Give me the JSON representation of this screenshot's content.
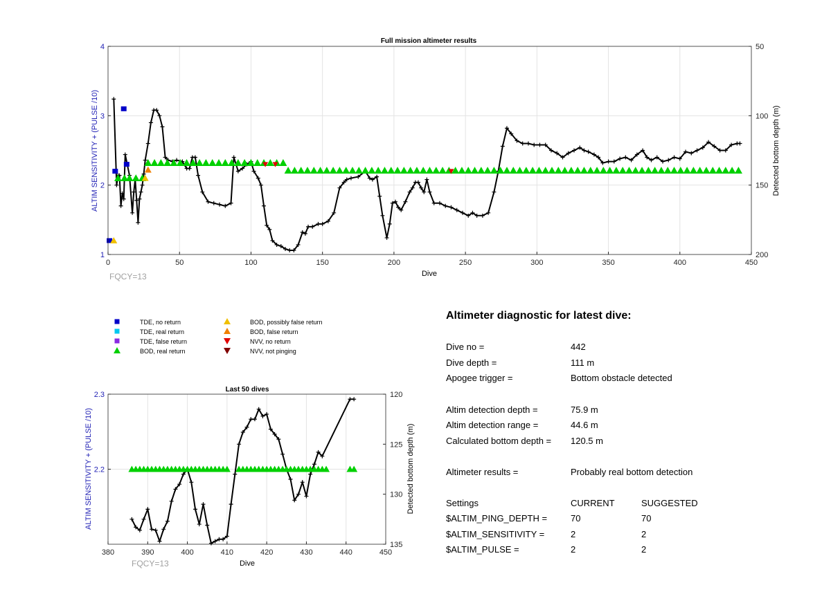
{
  "chart_data": [
    {
      "type": "line",
      "title": "Full mission altimeter results",
      "xlabel": "Dive",
      "ylabel_left": "ALTIM SENSITIVITY + (PULSE /10)",
      "ylabel_right": "Detected bottom depth (m)",
      "xlim": [
        0,
        450
      ],
      "ylim_left": [
        1,
        4
      ],
      "ylim_right": [
        50,
        200
      ],
      "right_axis_reversed": true,
      "grid": true,
      "x_ticks": [
        "0",
        "50",
        "100",
        "150",
        "200",
        "250",
        "300",
        "350",
        "400",
        "450"
      ],
      "y_left_ticks": [
        "1",
        "2",
        "3",
        "4"
      ],
      "y_right_ticks": [
        "50",
        "100",
        "150",
        "200"
      ],
      "fqcy_label": "FQCY=13",
      "series": [
        {
          "name": "Detected bottom depth",
          "axis": "right",
          "color": "#000000",
          "x": [
            4,
            6,
            7,
            8,
            9,
            10,
            11,
            12,
            15,
            17,
            18,
            19,
            20,
            21,
            22,
            23,
            24,
            25,
            26,
            28,
            30,
            32,
            34,
            36,
            38,
            40,
            42,
            45,
            48,
            52,
            55,
            57,
            59,
            61,
            63,
            66,
            70,
            74,
            78,
            82,
            86,
            88,
            91,
            94,
            97,
            100,
            102,
            105,
            107,
            109,
            111,
            113,
            115,
            118,
            121,
            124,
            127,
            130,
            133,
            136,
            138,
            140,
            143,
            147,
            150,
            154,
            158,
            162,
            165,
            167,
            170,
            175,
            180,
            183,
            185,
            188,
            190,
            192,
            195,
            197,
            199,
            201,
            203,
            205,
            208,
            211,
            213,
            215,
            217,
            219,
            221,
            223,
            225,
            228,
            232,
            236,
            240,
            244,
            248,
            252,
            255,
            258,
            262,
            266,
            270,
            273,
            276,
            279,
            282,
            286,
            290,
            294,
            298,
            302,
            306,
            310,
            314,
            318,
            322,
            326,
            330,
            333,
            336,
            340,
            343,
            346,
            350,
            354,
            358,
            362,
            366,
            370,
            374,
            377,
            380,
            384,
            388,
            392,
            396,
            400,
            404,
            408,
            412,
            416,
            420,
            424,
            428,
            432,
            436,
            440,
            442
          ],
          "y": [
            88,
            150,
            143,
            143,
            165,
            156,
            160,
            128,
            143,
            170,
            155,
            146,
            161,
            177,
            160,
            155,
            150,
            142,
            132,
            120,
            105,
            96,
            96,
            100,
            108,
            130,
            132,
            133,
            132,
            133,
            138,
            138,
            130,
            130,
            143,
            155,
            162,
            163,
            164,
            165,
            163,
            130,
            140,
            138,
            135,
            133,
            140,
            145,
            150,
            165,
            179,
            182,
            190,
            193,
            194,
            196,
            197,
            197,
            193,
            184,
            185,
            180,
            180,
            178,
            178,
            176,
            170,
            152,
            148,
            146,
            145,
            144,
            140,
            145,
            146,
            144,
            158,
            172,
            188,
            178,
            163,
            162,
            166,
            168,
            162,
            155,
            152,
            148,
            148,
            152,
            155,
            146,
            155,
            163,
            163,
            165,
            166,
            168,
            170,
            172,
            170,
            172,
            172,
            170,
            155,
            140,
            122,
            109,
            113,
            118,
            120,
            120,
            121,
            121,
            121,
            125,
            127,
            130,
            127,
            125,
            123,
            125,
            126,
            128,
            130,
            134,
            133,
            133,
            131,
            130,
            132,
            128,
            125,
            130,
            132,
            130,
            133,
            132,
            130,
            131,
            126,
            127,
            125,
            123,
            119,
            122,
            125,
            125,
            121,
            120,
            120
          ]
        },
        {
          "name": "BOD, real return",
          "axis": "left",
          "color": "#00d000",
          "marker": "triangle-up",
          "x_ranges": [
            [
              7,
              13
            ],
            [
              15,
              28
            ],
            [
              28,
              126
            ],
            [
              126,
              445
            ]
          ],
          "y_values": [
            2.1,
            2.1,
            2.32,
            2.21
          ]
        },
        {
          "name": "TDE, no return",
          "axis": "left",
          "color": "#0000c8",
          "marker": "square",
          "points": [
            [
              1,
              1.2
            ],
            [
              5,
              2.2
            ],
            [
              11,
              3.1
            ],
            [
              13,
              2.3
            ]
          ]
        },
        {
          "name": "BOD, possibly false return",
          "axis": "left",
          "color": "#f0c000",
          "marker": "triangle-up",
          "points": [
            [
              4,
              1.2
            ],
            [
              26,
              2.1
            ]
          ]
        },
        {
          "name": "BOD, false return",
          "axis": "left",
          "color": "#f08000",
          "marker": "triangle-up",
          "points": [
            [
              28,
              2.22
            ]
          ]
        },
        {
          "name": "NVV, no return",
          "axis": "left",
          "color": "#e00000",
          "marker": "triangle-down",
          "points": [
            [
              110,
              2.3
            ],
            [
              117,
              2.3
            ],
            [
              240,
              2.2
            ]
          ]
        }
      ]
    },
    {
      "type": "line",
      "title": "Last 50 dives",
      "xlabel": "Dive",
      "ylabel_left": "ALTIM SENSITIVITY + (PULSE /10)",
      "ylabel_right": "Detected bottom depth (m)",
      "xlim": [
        380,
        450
      ],
      "ylim_left": [
        2.1,
        2.3
      ],
      "ylim_right": [
        120,
        135
      ],
      "right_axis_reversed": true,
      "grid": true,
      "x_ticks": [
        "380",
        "390",
        "400",
        "410",
        "420",
        "430",
        "440",
        "450"
      ],
      "y_left_ticks": [
        "2.2",
        "2.3"
      ],
      "y_right_ticks": [
        "120",
        "125",
        "130",
        "135"
      ],
      "fqcy_label": "FQCY=13",
      "series": [
        {
          "name": "Detected bottom depth",
          "axis": "right",
          "color": "#000000",
          "x": [
            386,
            387,
            388,
            389,
            390,
            391,
            392,
            393,
            394,
            395,
            396,
            397,
            398,
            399,
            400,
            401,
            402,
            403,
            404,
            405,
            406,
            407,
            408,
            409,
            410,
            411,
            412,
            413,
            414,
            415,
            416,
            417,
            418,
            419,
            420,
            421,
            422,
            423,
            424,
            425,
            426,
            427,
            428,
            429,
            430,
            431,
            432,
            433,
            434,
            441,
            442
          ],
          "y": [
            132.5,
            133.3,
            133.6,
            132.5,
            131.5,
            133.5,
            133.6,
            134.7,
            133.5,
            132.7,
            130.7,
            129.5,
            129,
            128,
            127.5,
            128.8,
            131.5,
            133,
            131,
            133.1,
            134.9,
            134.7,
            134.5,
            134.5,
            134.2,
            131,
            128,
            125,
            123.8,
            123.3,
            122.5,
            122.5,
            121.5,
            122.2,
            122,
            123.5,
            124,
            124.5,
            126,
            127.5,
            128.5,
            130.6,
            130,
            128.8,
            130.2,
            128,
            127,
            125.8,
            126.2,
            120.5,
            120.5
          ]
        },
        {
          "name": "BOD, real return",
          "axis": "left",
          "color": "#00d000",
          "marker": "triangle-up",
          "x": [
            386,
            387,
            388,
            389,
            390,
            391,
            392,
            393,
            394,
            395,
            396,
            397,
            398,
            399,
            400,
            401,
            402,
            403,
            404,
            405,
            406,
            407,
            408,
            409,
            410,
            413,
            414,
            415,
            416,
            417,
            418,
            419,
            420,
            421,
            422,
            423,
            424,
            425,
            426,
            427,
            428,
            429,
            430,
            431,
            432,
            433,
            434,
            435,
            441,
            442
          ],
          "y_value": 2.2
        }
      ]
    }
  ],
  "legend": {
    "col1": [
      {
        "label": "TDE, no return",
        "color": "#0000c8",
        "marker": "square"
      },
      {
        "label": "TDE, real return",
        "color": "#00c8f0",
        "marker": "square"
      },
      {
        "label": "TDE, false return",
        "color": "#8a2be2",
        "marker": "square"
      },
      {
        "label": "BOD, real return",
        "color": "#00d000",
        "marker": "triangle-up"
      }
    ],
    "col2": [
      {
        "label": "BOD, possibly false return",
        "color": "#f0c000",
        "marker": "triangle-up"
      },
      {
        "label": "BOD, false return",
        "color": "#f08000",
        "marker": "triangle-up"
      },
      {
        "label": "NVV, no return",
        "color": "#e00000",
        "marker": "triangle-down"
      },
      {
        "label": "NVV, not pinging",
        "color": "#800000",
        "marker": "triangle-down"
      }
    ]
  },
  "diagnostic": {
    "title": "Altimeter diagnostic for latest dive:",
    "rows": [
      {
        "label": "Dive no =",
        "value": "442"
      },
      {
        "label": "Dive depth =",
        "value": "111 m"
      },
      {
        "label": "Apogee trigger =",
        "value": "Bottom obstacle detected"
      },
      {
        "label": "Altim detection depth =",
        "value": "75.9 m"
      },
      {
        "label": "Altim detection range =",
        "value": "44.6 m"
      },
      {
        "label": "Calculated bottom depth =",
        "value": "120.5 m"
      },
      {
        "label": "Altimeter results =",
        "value": "Probably real bottom detection"
      }
    ],
    "settings_header": {
      "label": "Settings",
      "current": "CURRENT",
      "suggested": "SUGGESTED"
    },
    "settings": [
      {
        "label": "$ALTIM_PING_DEPTH =",
        "current": "70",
        "suggested": "70"
      },
      {
        "label": "$ALTIM_SENSITIVITY =",
        "current": "2",
        "suggested": "2"
      },
      {
        "label": "$ALTIM_PULSE =",
        "current": "2",
        "suggested": "2"
      }
    ]
  }
}
